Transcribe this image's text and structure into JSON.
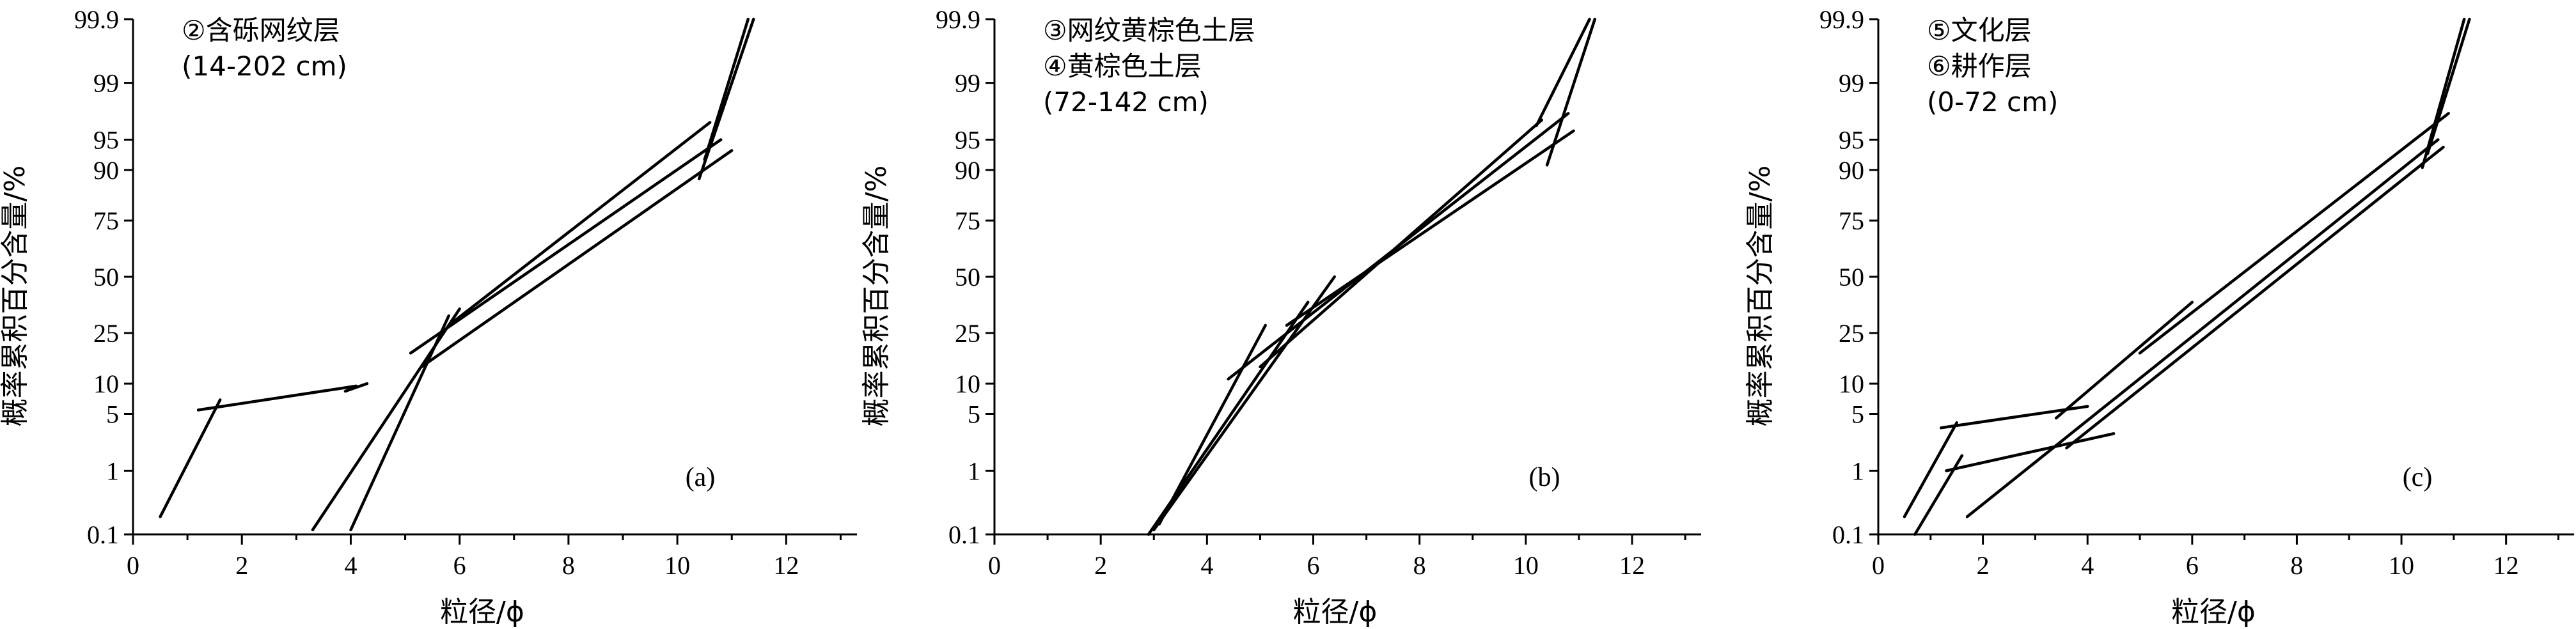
{
  "chart_data": [
    {
      "type": "line",
      "panel_label": "(a)",
      "legend": [
        "②含砾网纹层",
        "(14-202 cm)"
      ],
      "xlabel": "粒径/ϕ",
      "ylabel": "概率累积百分含量/%",
      "x_ticks": [
        "0",
        "2",
        "4",
        "6",
        "8",
        "10",
        "12"
      ],
      "y_ticks": [
        "0.1",
        "1",
        "5",
        "10",
        "25",
        "50",
        "75",
        "90",
        "95",
        "99",
        "99.9"
      ],
      "xlim": [
        0,
        13.3
      ],
      "ylim": [
        0.1,
        99.9
      ],
      "y_scale": "probability",
      "grid": false,
      "segments": [
        {
          "x": [
            0.5,
            1.6
          ],
          "y": [
            0.2,
            7.0
          ]
        },
        {
          "x": [
            1.2,
            4.1
          ],
          "y": [
            5.5,
            9.5
          ]
        },
        {
          "x": [
            3.9,
            4.3
          ],
          "y": [
            8.5,
            10.0
          ]
        },
        {
          "x": [
            3.3,
            6.0
          ],
          "y": [
            0.12,
            35.0
          ]
        },
        {
          "x": [
            4.0,
            5.8
          ],
          "y": [
            0.12,
            32.0
          ]
        },
        {
          "x": [
            5.1,
            10.8
          ],
          "y": [
            18.0,
            95.0
          ]
        },
        {
          "x": [
            5.3,
            11.0
          ],
          "y": [
            14.0,
            93.5
          ]
        },
        {
          "x": [
            5.8,
            10.6
          ],
          "y": [
            28.0,
            96.8
          ]
        },
        {
          "x": [
            10.4,
            11.4
          ],
          "y": [
            88.0,
            99.9
          ]
        },
        {
          "x": [
            10.5,
            11.3
          ],
          "y": [
            92.0,
            99.9
          ]
        }
      ]
    },
    {
      "type": "line",
      "panel_label": "(b)",
      "legend": [
        "③网纹黄棕色土层",
        "④黄棕色土层",
        "(72-142 cm)"
      ],
      "xlabel": "粒径/ϕ",
      "ylabel": "概率累积百分含量/%",
      "x_ticks": [
        "0",
        "2",
        "4",
        "6",
        "8",
        "10",
        "12"
      ],
      "y_ticks": [
        "0.1",
        "1",
        "5",
        "10",
        "25",
        "50",
        "75",
        "90",
        "95",
        "99",
        "99.9"
      ],
      "xlim": [
        0,
        13.3
      ],
      "ylim": [
        0.1,
        99.9
      ],
      "y_scale": "probability",
      "grid": false,
      "segments": [
        {
          "x": [
            3.1,
            5.1
          ],
          "y": [
            0.15,
            28.0
          ]
        },
        {
          "x": [
            3.0,
            6.4
          ],
          "y": [
            0.12,
            50.0
          ]
        },
        {
          "x": [
            2.9,
            5.9
          ],
          "y": [
            0.1,
            38.0
          ]
        },
        {
          "x": [
            4.4,
            10.8
          ],
          "y": [
            11.0,
            97.5
          ]
        },
        {
          "x": [
            5.0,
            10.3
          ],
          "y": [
            14.0,
            97.0
          ]
        },
        {
          "x": [
            5.5,
            10.9
          ],
          "y": [
            28.0,
            96.0
          ]
        },
        {
          "x": [
            10.2,
            11.2
          ],
          "y": [
            96.5,
            99.9
          ]
        },
        {
          "x": [
            10.4,
            11.3
          ],
          "y": [
            91.0,
            99.9
          ]
        }
      ]
    },
    {
      "type": "line",
      "panel_label": "(c)",
      "legend": [
        "⑤文化层",
        "⑥耕作层",
        "(0-72 cm)"
      ],
      "xlabel": "粒径/ϕ",
      "ylabel": "概率累积百分含量/%",
      "x_ticks": [
        "0",
        "2",
        "4",
        "6",
        "8",
        "10",
        "12"
      ],
      "y_ticks": [
        "0.1",
        "1",
        "5",
        "10",
        "25",
        "50",
        "75",
        "90",
        "95",
        "99",
        "99.9"
      ],
      "xlim": [
        0,
        13.3
      ],
      "ylim": [
        0.1,
        99.9
      ],
      "y_scale": "probability",
      "grid": false,
      "segments": [
        {
          "x": [
            0.5,
            1.5
          ],
          "y": [
            0.2,
            4.0
          ]
        },
        {
          "x": [
            0.7,
            1.6
          ],
          "y": [
            0.1,
            1.6
          ]
        },
        {
          "x": [
            1.2,
            4.0
          ],
          "y": [
            3.5,
            6.0
          ]
        },
        {
          "x": [
            1.3,
            4.5
          ],
          "y": [
            1.0,
            3.0
          ]
        },
        {
          "x": [
            1.7,
            10.7
          ],
          "y": [
            0.2,
            95.0
          ]
        },
        {
          "x": [
            3.4,
            6.0
          ],
          "y": [
            4.5,
            38.0
          ]
        },
        {
          "x": [
            5.0,
            10.9
          ],
          "y": [
            18.0,
            97.5
          ]
        },
        {
          "x": [
            3.6,
            10.8
          ],
          "y": [
            2.0,
            94.0
          ]
        },
        {
          "x": [
            10.4,
            11.2
          ],
          "y": [
            90.5,
            99.9
          ]
        },
        {
          "x": [
            10.5,
            11.3
          ],
          "y": [
            93.0,
            99.9
          ]
        }
      ]
    }
  ]
}
